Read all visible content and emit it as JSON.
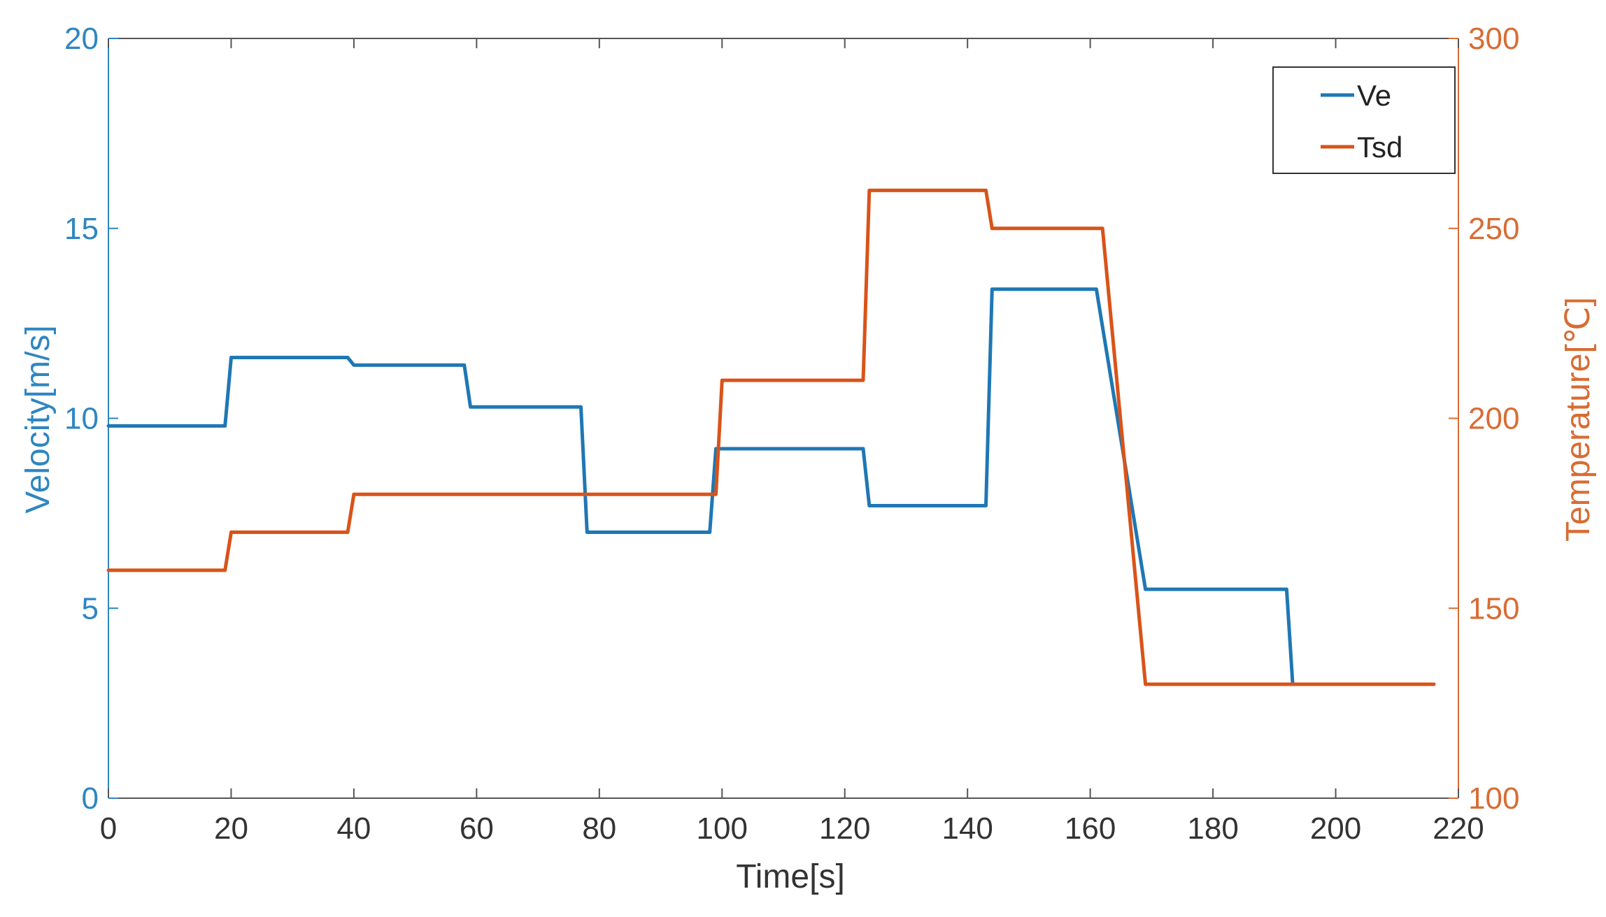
{
  "chart_data": {
    "type": "line",
    "xlabel": "Time[s]",
    "ylabel_left": "Velocity[m/s]",
    "ylabel_right": "Temperature[℃]",
    "xlim": [
      0,
      220
    ],
    "ylim_left": [
      0,
      20
    ],
    "ylim_right": [
      100,
      300
    ],
    "xticks": [
      "0",
      "20",
      "40",
      "60",
      "80",
      "100",
      "120",
      "140",
      "160",
      "180",
      "200",
      "220"
    ],
    "yticks_left": [
      "0",
      "5",
      "10",
      "15",
      "20"
    ],
    "yticks_right": [
      "100",
      "150",
      "200",
      "250",
      "300"
    ],
    "grid": false,
    "legend_position": "top-right",
    "colors": {
      "left_axis": "#2e86c1",
      "right_axis": "#d86c34",
      "bottom_axis": "#555555"
    },
    "series": [
      {
        "name": "Ve",
        "axis": "left",
        "color": "#1f77b4",
        "x": [
          0,
          19,
          20,
          39,
          40,
          58,
          59,
          77,
          78,
          98,
          99,
          123,
          124,
          143,
          144,
          161,
          169,
          192,
          193,
          216
        ],
        "y": [
          9.8,
          9.8,
          11.6,
          11.6,
          11.4,
          11.4,
          10.3,
          10.3,
          7.0,
          7.0,
          9.2,
          9.2,
          7.7,
          7.7,
          13.4,
          13.4,
          5.5,
          5.5,
          3.0,
          3.0
        ]
      },
      {
        "name": "Tsd",
        "axis": "right",
        "color": "#d95319",
        "x": [
          0,
          19,
          20,
          39,
          40,
          99,
          100,
          123,
          124,
          143,
          144,
          162,
          169,
          216
        ],
        "y": [
          160,
          160,
          170,
          170,
          180,
          180,
          210,
          210,
          260,
          260,
          250,
          250,
          130,
          130
        ]
      }
    ]
  }
}
